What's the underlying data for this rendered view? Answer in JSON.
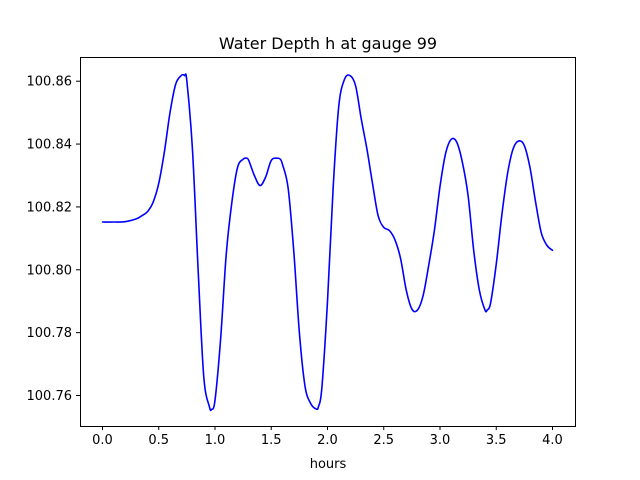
{
  "chart_data": {
    "type": "line",
    "title": "Water Depth h at gauge 99",
    "xlabel": "hours",
    "ylabel": "",
    "xlim": [
      -0.2,
      4.2
    ],
    "ylim": [
      100.7503,
      100.8677
    ],
    "grid": false,
    "legend": "none",
    "x_ticks": [
      0.0,
      0.5,
      1.0,
      1.5,
      2.0,
      2.5,
      3.0,
      3.5,
      4.0
    ],
    "x_tick_labels": [
      "0.0",
      "0.5",
      "1.0",
      "1.5",
      "2.0",
      "2.5",
      "3.0",
      "3.5",
      "4.0"
    ],
    "y_ticks": [
      100.76,
      100.78,
      100.8,
      100.82,
      100.84,
      100.86
    ],
    "y_tick_labels": [
      "100.76",
      "100.78",
      "100.80",
      "100.82",
      "100.84",
      "100.86"
    ],
    "series": [
      {
        "color": "#0000ff",
        "x": [
          0.0,
          0.1,
          0.2,
          0.3,
          0.35,
          0.4,
          0.45,
          0.5,
          0.55,
          0.6,
          0.65,
          0.7,
          0.73,
          0.75,
          0.8,
          0.85,
          0.9,
          0.95,
          0.97,
          1.0,
          1.05,
          1.1,
          1.15,
          1.2,
          1.25,
          1.28,
          1.3,
          1.35,
          1.4,
          1.45,
          1.5,
          1.55,
          1.58,
          1.6,
          1.65,
          1.7,
          1.75,
          1.8,
          1.85,
          1.9,
          1.92,
          1.95,
          2.0,
          2.05,
          2.1,
          2.15,
          2.2,
          2.25,
          2.3,
          2.35,
          2.4,
          2.45,
          2.5,
          2.55,
          2.6,
          2.65,
          2.7,
          2.75,
          2.8,
          2.85,
          2.9,
          2.95,
          3.0,
          3.05,
          3.1,
          3.15,
          3.2,
          3.25,
          3.3,
          3.35,
          3.4,
          3.42,
          3.45,
          3.5,
          3.55,
          3.6,
          3.65,
          3.7,
          3.75,
          3.8,
          3.85,
          3.9,
          3.95,
          4.0
        ],
        "y": [
          100.8152,
          100.8152,
          100.8153,
          100.8162,
          100.8172,
          100.8185,
          100.8215,
          100.8275,
          100.8375,
          100.85,
          100.859,
          100.8618,
          100.8618,
          100.86,
          100.838,
          100.8,
          100.766,
          100.7565,
          100.7556,
          100.7585,
          100.778,
          100.805,
          100.8215,
          100.8325,
          100.8352,
          100.8355,
          100.8348,
          100.83,
          100.8268,
          100.8295,
          100.8348,
          100.8355,
          100.8352,
          100.8335,
          100.826,
          100.806,
          100.78,
          100.763,
          100.7575,
          100.7557,
          100.7565,
          100.7625,
          100.79,
          100.826,
          100.852,
          100.8605,
          100.8618,
          100.8585,
          100.848,
          100.8385,
          100.8275,
          100.8172,
          100.8135,
          100.8125,
          100.8095,
          100.8035,
          100.7935,
          100.7875,
          100.7872,
          100.7918,
          100.8015,
          100.8125,
          100.8265,
          100.837,
          100.8415,
          100.8405,
          100.834,
          100.8235,
          100.806,
          100.7935,
          100.7872,
          100.7872,
          100.7895,
          100.8018,
          100.8175,
          100.8305,
          100.8385,
          100.841,
          100.8395,
          100.8325,
          100.8215,
          100.8118,
          100.8078,
          100.8062
        ]
      }
    ]
  }
}
